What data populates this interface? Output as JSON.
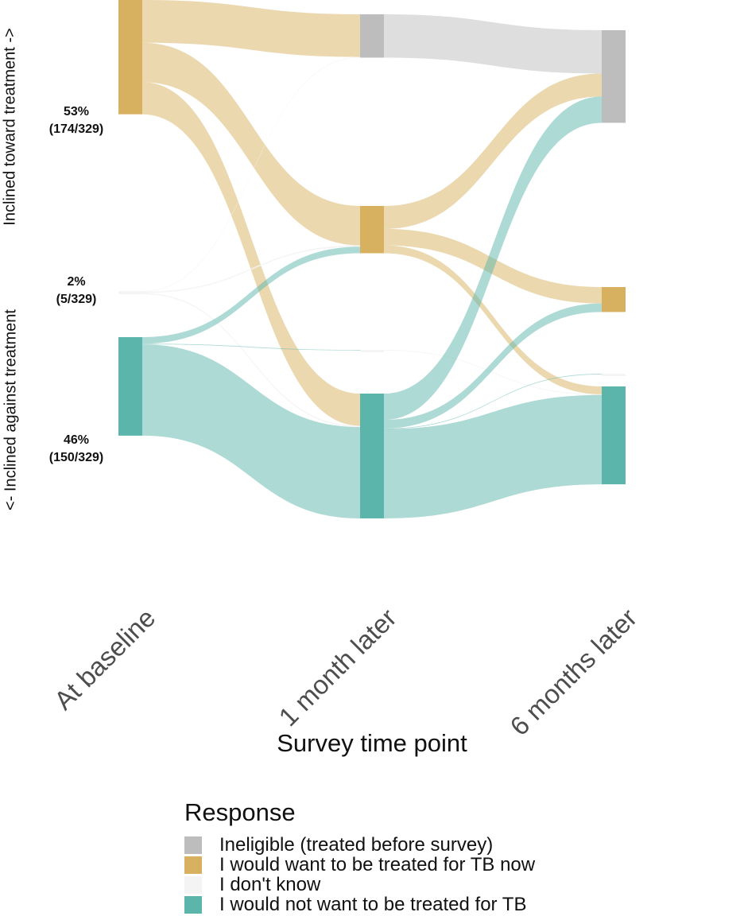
{
  "chart_data": {
    "type": "sankey",
    "xlabel": "Survey time point",
    "timepoints": [
      "At baseline",
      "1 month later",
      "6 months later"
    ],
    "y_axis_labels": {
      "top": "Inclined toward treatment  ->",
      "bottom": "<-  Inclined against treatment"
    },
    "baseline_annotations": [
      {
        "category": "I would want to be treated for TB now",
        "percent": "53%",
        "count": "(174/329)"
      },
      {
        "category": "I don't know",
        "percent": "2%",
        "count": "(5/329)"
      },
      {
        "category": "I would not want to be treated for TB",
        "percent": "46%",
        "count": "(150/329)"
      }
    ],
    "legend": {
      "title": "Response",
      "items": [
        {
          "label": "Ineligible (treated before survey)",
          "color": "#bdbdbd"
        },
        {
          "label": "I would want to be treated for TB now",
          "color": "#d8b160"
        },
        {
          "label": "I don't know",
          "color": "#f4f4f4"
        },
        {
          "label": "I would not want to be treated for TB",
          "color": "#5bb5ab"
        }
      ]
    },
    "node_totals": {
      "At baseline": {
        "want": 174,
        "dont_know": 5,
        "not_want": 150
      },
      "1 month later": {
        "ineligible": 66,
        "want": 72,
        "dont_know": 1,
        "not_want": 190
      },
      "6 months later": {
        "ineligible": 141,
        "want": 38,
        "dont_know": 1,
        "not_want": 149
      }
    },
    "flows": [
      {
        "from": "b_want",
        "to": "m_inel",
        "value": 65
      },
      {
        "from": "b_want",
        "to": "m_want",
        "value": 60
      },
      {
        "from": "b_want",
        "to": "m_not",
        "value": 49
      },
      {
        "from": "b_dk",
        "to": "m_inel",
        "value": 1
      },
      {
        "from": "b_dk",
        "to": "m_want",
        "value": 2
      },
      {
        "from": "b_dk",
        "to": "m_not",
        "value": 2
      },
      {
        "from": "b_not",
        "to": "m_want",
        "value": 10
      },
      {
        "from": "b_not",
        "to": "m_dk",
        "value": 1
      },
      {
        "from": "b_not",
        "to": "m_not",
        "value": 139
      },
      {
        "from": "m_inel",
        "to": "s_inel",
        "value": 66
      },
      {
        "from": "m_want",
        "to": "s_inel",
        "value": 35
      },
      {
        "from": "m_want",
        "to": "s_want",
        "value": 25
      },
      {
        "from": "m_want",
        "to": "s_not",
        "value": 12
      },
      {
        "from": "m_dk",
        "to": "s_not",
        "value": 1
      },
      {
        "from": "m_not",
        "to": "s_inel",
        "value": 40
      },
      {
        "from": "m_not",
        "to": "s_want",
        "value": 13
      },
      {
        "from": "m_not",
        "to": "s_dk",
        "value": 1
      },
      {
        "from": "m_not",
        "to": "s_not",
        "value": 136
      }
    ]
  }
}
